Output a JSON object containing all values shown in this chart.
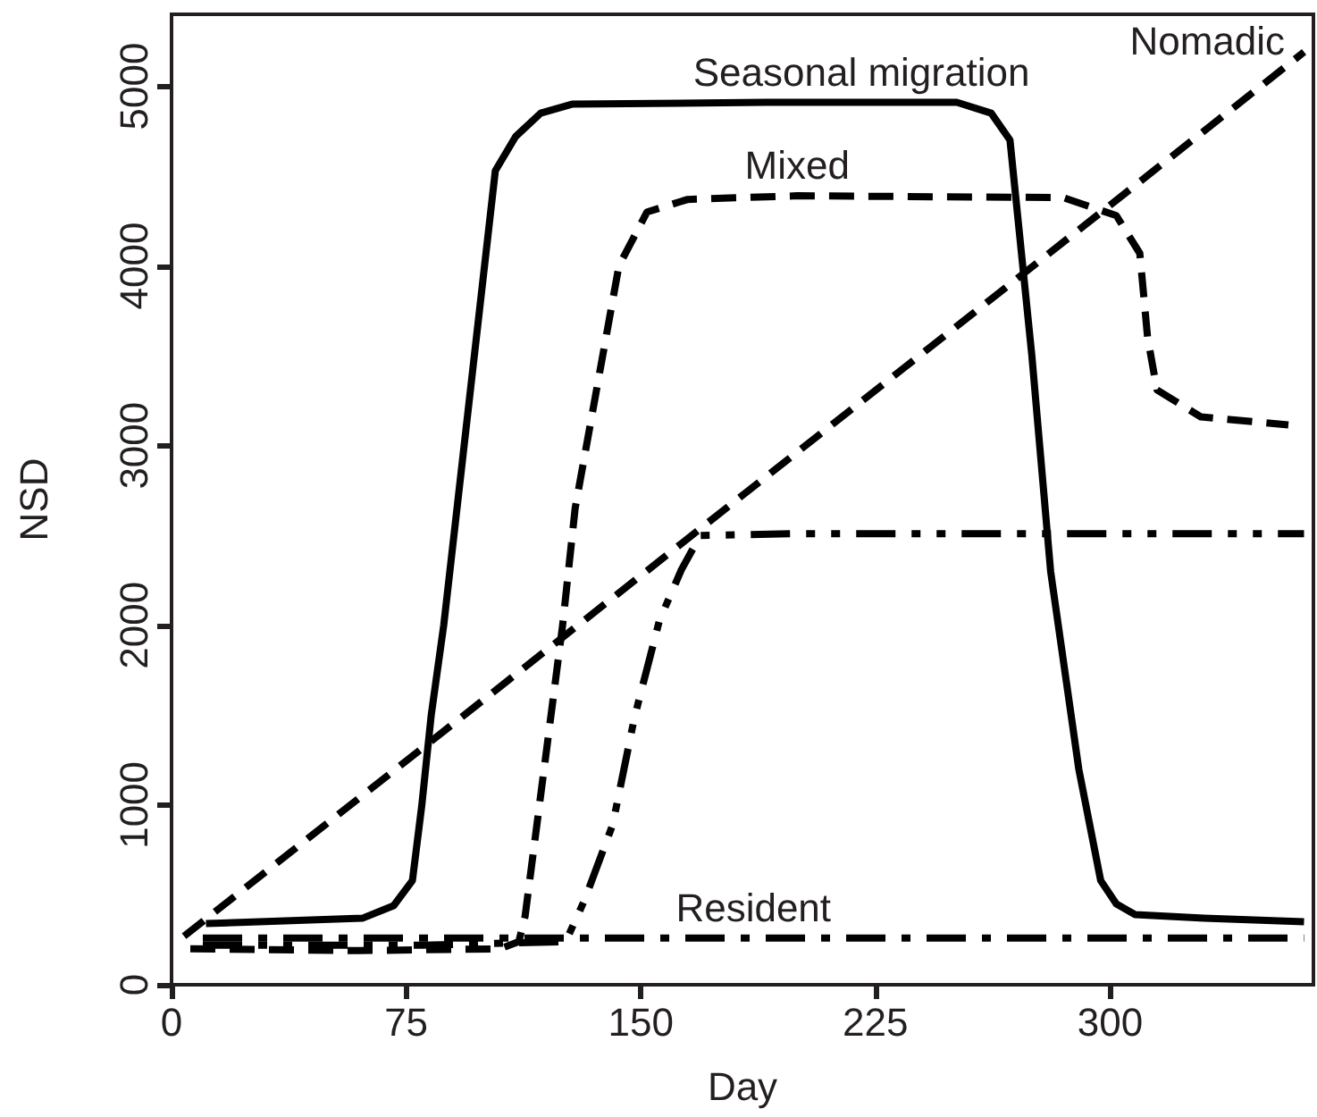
{
  "chart_data": {
    "type": "line",
    "xlabel": "Day",
    "ylabel": "NSD",
    "xlim": [
      0,
      365
    ],
    "xticks": [
      0,
      75,
      150,
      225,
      300
    ],
    "ylim": [
      0,
      5400
    ],
    "yticks": [
      0,
      1000,
      2000,
      3000,
      4000,
      5000
    ],
    "grid": false,
    "legend": false,
    "marker": "none",
    "series": [
      {
        "name": "Seasonal migration",
        "color": "#000000",
        "line_style": "solid",
        "x": [
          11,
          61,
          71,
          77,
          80,
          83,
          87,
          103.5,
          110,
          118,
          128,
          190,
          251,
          262,
          268,
          275,
          281,
          290,
          297,
          302,
          308,
          330,
          362
        ],
        "values": [
          340,
          370,
          440,
          580,
          1000,
          1500,
          2000,
          4530,
          4720,
          4850,
          4900,
          4910,
          4910,
          4850,
          4700,
          3500,
          2300,
          1200,
          580,
          450,
          390,
          370,
          350
        ]
      },
      {
        "name": "Mixed",
        "color": "#000000",
        "line_style": "dashed",
        "x": [
          6,
          60,
          105,
          111,
          113,
          125,
          129,
          143,
          152,
          165,
          200,
          285,
          302,
          309.5,
          312,
          315,
          329,
          357
        ],
        "values": [
          200,
          190,
          200,
          240,
          380,
          2000,
          2650,
          4000,
          4300,
          4370,
          4390,
          4380,
          4280,
          4070,
          3600,
          3310,
          3160,
          3115
        ]
      },
      {
        "name": "Nomadic",
        "color": "#000000",
        "line_style": "dashed",
        "x": [
          4,
          362
        ],
        "values": [
          270,
          5190
        ]
      },
      {
        "color": "#000000",
        "line_style": "dashdotdot",
        "x": [
          10,
          80,
          126,
          132,
          141,
          148,
          156,
          163,
          169,
          200,
          362
        ],
        "values": [
          220,
          220,
          240,
          470,
          890,
          1490,
          2030,
          2310,
          2500,
          2510,
          2510
        ]
      },
      {
        "name": "Resident",
        "color": "#000000",
        "line_style": "dashdot",
        "x": [
          10,
          362
        ],
        "values": [
          260,
          260
        ]
      }
    ]
  }
}
